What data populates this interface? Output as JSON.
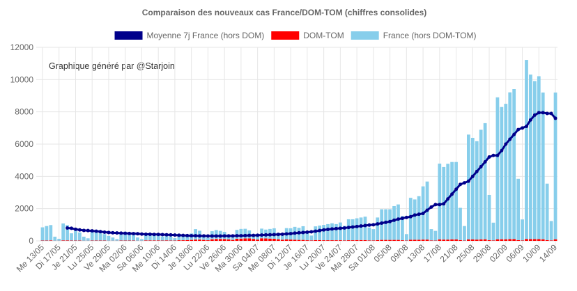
{
  "chart_data": {
    "type": "bar",
    "stacked": true,
    "title": "Comparaison des nouveaux cas France/DOM-TOM (chiffres consolides)",
    "annotation": "Graphique généré par @Starjoin",
    "grid": true,
    "legend": "top",
    "categories": [
      "Me 13/05",
      null,
      null,
      null,
      "Di 17/05",
      null,
      null,
      null,
      "Je 21/05",
      null,
      null,
      null,
      "Lu 25/05",
      null,
      null,
      null,
      "Ve 29/05",
      null,
      null,
      null,
      "Ma 02/06",
      null,
      null,
      null,
      "Sa 06/06",
      null,
      null,
      null,
      "Me 10/06",
      null,
      null,
      null,
      "Di 14/06",
      null,
      null,
      null,
      "Je 18/06",
      null,
      null,
      null,
      "Lu 22/06",
      null,
      null,
      null,
      "Ve 26/06",
      null,
      null,
      null,
      "Ma 30/06",
      null,
      null,
      null,
      "Sa 04/07",
      null,
      null,
      null,
      "Me 08/07",
      null,
      null,
      null,
      "Di 12/07",
      null,
      null,
      null,
      "Je 16/07",
      null,
      null,
      null,
      "Lu 20/07",
      null,
      null,
      null,
      "Ve 24/07",
      null,
      null,
      null,
      "Ma 28/07",
      null,
      null,
      null,
      "Sa 01/08",
      null,
      null,
      null,
      "05/08",
      null,
      null,
      null,
      "09/08",
      null,
      null,
      null,
      "13/08",
      null,
      null,
      null,
      "17/08",
      null,
      null,
      null,
      "21/08",
      null,
      null,
      null,
      "25/08",
      null,
      null,
      null,
      "29/08",
      null,
      null,
      null,
      "02/09",
      null,
      null,
      null,
      "06/09",
      null,
      null,
      null,
      "10/09",
      null,
      null,
      null,
      "14/09"
    ],
    "ylim": [
      0,
      12000
    ],
    "yticks": [
      0,
      2000,
      4000,
      6000,
      8000,
      10000,
      12000
    ],
    "series": [
      {
        "name": "Moyenne 7j France (hors DOM)",
        "type": "line",
        "color": "#00008b",
        "values": [
          null,
          null,
          null,
          null,
          null,
          null,
          800,
          780,
          720,
          680,
          650,
          640,
          620,
          600,
          570,
          540,
          520,
          500,
          490,
          480,
          470,
          460,
          450,
          440,
          420,
          410,
          410,
          400,
          400,
          390,
          380,
          370,
          360,
          350,
          340,
          330,
          320,
          320,
          310,
          310,
          300,
          300,
          300,
          300,
          310,
          310,
          310,
          320,
          320,
          330,
          340,
          340,
          350,
          360,
          370,
          380,
          390,
          400,
          410,
          430,
          450,
          480,
          500,
          520,
          540,
          560,
          600,
          640,
          680,
          710,
          740,
          760,
          780,
          800,
          830,
          860,
          890,
          920,
          950,
          980,
          1000,
          1050,
          1100,
          1150,
          1200,
          1280,
          1350,
          1400,
          1450,
          1500,
          1600,
          1650,
          1700,
          1900,
          2100,
          2250,
          2250,
          2300,
          2600,
          2900,
          3200,
          3500,
          3600,
          3700,
          4000,
          4300,
          4600,
          4900,
          5200,
          5300,
          5300,
          5600,
          6000,
          6300,
          6600,
          6900,
          7000,
          7100,
          7500,
          7800,
          7950,
          7950,
          7900,
          7900,
          7600
        ]
      },
      {
        "name": "DOM-TOM",
        "type": "bar",
        "color": "#ff0000",
        "values": [
          20,
          20,
          30,
          10,
          10,
          30,
          30,
          20,
          20,
          20,
          10,
          10,
          20,
          20,
          20,
          20,
          10,
          10,
          10,
          20,
          20,
          20,
          20,
          10,
          10,
          30,
          30,
          30,
          30,
          20,
          30,
          20,
          20,
          40,
          40,
          50,
          60,
          80,
          80,
          60,
          40,
          100,
          120,
          120,
          110,
          90,
          60,
          130,
          140,
          150,
          150,
          120,
          80,
          160,
          150,
          140,
          130,
          100,
          70,
          90,
          80,
          70,
          60,
          60,
          40,
          30,
          50,
          50,
          40,
          40,
          40,
          40,
          40,
          30,
          40,
          40,
          50,
          50,
          50,
          30,
          30,
          50,
          60,
          60,
          60,
          60,
          60,
          40,
          20,
          70,
          70,
          70,
          80,
          80,
          30,
          20,
          90,
          80,
          80,
          90,
          90,
          50,
          20,
          90,
          90,
          80,
          90,
          100,
          50,
          30,
          100,
          100,
          100,
          110,
          110,
          50,
          30,
          120,
          110,
          110,
          110,
          100,
          50,
          30,
          100
        ]
      },
      {
        "name": "France (hors DOM-TOM)",
        "type": "bar",
        "color": "#87ceeb",
        "values": [
          820,
          900,
          950,
          250,
          120,
          1050,
          950,
          450,
          700,
          500,
          250,
          150,
          550,
          500,
          450,
          400,
          300,
          200,
          100,
          500,
          550,
          400,
          350,
          200,
          100,
          450,
          450,
          400,
          350,
          250,
          350,
          250,
          150,
          400,
          350,
          300,
          400,
          650,
          550,
          300,
          150,
          500,
          550,
          500,
          450,
          300,
          200,
          550,
          600,
          600,
          500,
          300,
          200,
          600,
          550,
          600,
          650,
          400,
          250,
          700,
          700,
          800,
          750,
          850,
          500,
          300,
          850,
          900,
          950,
          1000,
          1050,
          1000,
          1100,
          900,
          1300,
          1300,
          1350,
          1400,
          1450,
          800,
          700,
          1400,
          1900,
          1900,
          1900,
          2100,
          2200,
          1500,
          400,
          2600,
          2500,
          2700,
          3300,
          3600,
          700,
          600,
          4700,
          4500,
          4700,
          4800,
          4800,
          2000,
          900,
          6500,
          6300,
          6100,
          6800,
          7200,
          2800,
          1100,
          8800,
          8200,
          8400,
          9100,
          9300,
          3800,
          1300,
          11100,
          10200,
          9800,
          10100,
          9100,
          3500,
          1200,
          9100
        ]
      }
    ]
  }
}
